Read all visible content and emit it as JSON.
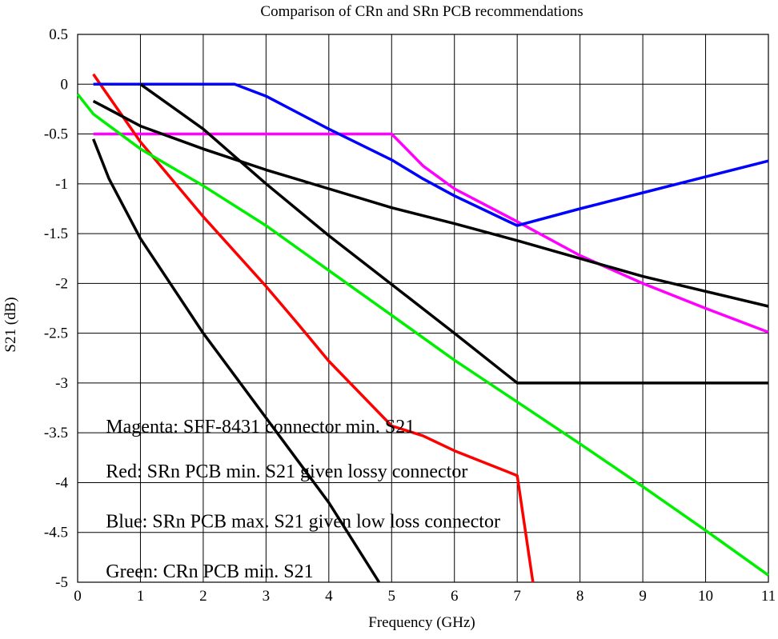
{
  "chart_data": {
    "type": "line",
    "title": "Comparison of CRn and SRn PCB recommendations",
    "xlabel": "Frequency (GHz)",
    "ylabel": "S21 (dB)",
    "xlim": [
      0,
      11
    ],
    "ylim": [
      -5,
      0.5
    ],
    "grid": true,
    "x_ticks": [
      0,
      1,
      2,
      3,
      4,
      5,
      6,
      7,
      8,
      9,
      10,
      11
    ],
    "x_tick_labels": [
      "0",
      "1",
      "2",
      "3",
      "4",
      "5",
      "6",
      "7",
      "8",
      "9",
      "10",
      "11"
    ],
    "y_ticks": [
      0.5,
      0,
      -0.5,
      -1,
      -1.5,
      -2,
      -2.5,
      -3,
      -3.5,
      -4,
      -4.5,
      -5
    ],
    "y_tick_labels": [
      "0.5",
      "0",
      "-0.5",
      "-1",
      "-1.5",
      "-2",
      "-2.5",
      "-3",
      "-3.5",
      "-4",
      "-4.5",
      "-5"
    ],
    "series": [
      {
        "color": "#ff00ff",
        "points": [
          [
            0.25,
            -0.5
          ],
          [
            5,
            -0.5
          ],
          [
            5.5,
            -0.82
          ],
          [
            6,
            -1.05
          ],
          [
            7,
            -1.38
          ],
          [
            8,
            -1.72
          ],
          [
            9,
            -2.0
          ],
          [
            10,
            -2.25
          ],
          [
            11,
            -2.49
          ]
        ]
      },
      {
        "color": "#ff0000",
        "points": [
          [
            0.25,
            0.1
          ],
          [
            1,
            -0.58
          ],
          [
            2,
            -1.33
          ],
          [
            3,
            -2.03
          ],
          [
            3.5,
            -2.4
          ],
          [
            4,
            -2.78
          ],
          [
            5,
            -3.43
          ],
          [
            5.5,
            -3.53
          ],
          [
            6,
            -3.68
          ],
          [
            7,
            -3.93
          ],
          [
            7.25,
            -5.0
          ]
        ]
      },
      {
        "color": "#0000ff",
        "points": [
          [
            0.25,
            0
          ],
          [
            2.5,
            0
          ],
          [
            3,
            -0.12
          ],
          [
            4,
            -0.45
          ],
          [
            5,
            -0.76
          ],
          [
            5.5,
            -0.95
          ],
          [
            6,
            -1.12
          ],
          [
            7,
            -1.42
          ],
          [
            8,
            -1.25
          ],
          [
            9,
            -1.09
          ],
          [
            10,
            -0.93
          ],
          [
            11,
            -0.77
          ]
        ]
      },
      {
        "color": "#00ee00",
        "points": [
          [
            0,
            -0.1
          ],
          [
            0.25,
            -0.3
          ],
          [
            1,
            -0.65
          ],
          [
            2,
            -1.02
          ],
          [
            3,
            -1.42
          ],
          [
            4,
            -1.87
          ],
          [
            5,
            -2.32
          ],
          [
            6,
            -2.77
          ],
          [
            7,
            -3.19
          ],
          [
            8,
            -3.61
          ],
          [
            9,
            -4.04
          ],
          [
            10,
            -4.48
          ],
          [
            11,
            -4.93
          ]
        ]
      },
      {
        "color": "#000000",
        "points": [
          [
            0.25,
            -0.17
          ],
          [
            1,
            -0.42
          ],
          [
            2,
            -0.65
          ],
          [
            3,
            -0.86
          ],
          [
            4,
            -1.05
          ],
          [
            5,
            -1.24
          ],
          [
            6,
            -1.4
          ],
          [
            7,
            -1.57
          ],
          [
            8,
            -1.75
          ],
          [
            9,
            -1.93
          ],
          [
            10,
            -2.08
          ],
          [
            11,
            -2.23
          ]
        ]
      },
      {
        "color": "#000000",
        "points": [
          [
            1,
            0
          ],
          [
            2,
            -0.45
          ],
          [
            3,
            -1.0
          ],
          [
            4,
            -1.52
          ],
          [
            5,
            -2.01
          ],
          [
            6,
            -2.5
          ],
          [
            7,
            -3.0
          ],
          [
            8,
            -3.0
          ],
          [
            9,
            -3.0
          ],
          [
            10,
            -3.0
          ],
          [
            11,
            -3.0
          ]
        ]
      },
      {
        "color": "#000000",
        "points": [
          [
            0.25,
            -0.55
          ],
          [
            0.5,
            -0.95
          ],
          [
            1,
            -1.55
          ],
          [
            2,
            -2.5
          ],
          [
            3,
            -3.35
          ],
          [
            4,
            -4.2
          ],
          [
            4.8,
            -5.0
          ]
        ]
      }
    ],
    "annotations": [
      {
        "text": "Magenta: SFF-8431 connector min. S21",
        "x": 0.45,
        "y": -3.5
      },
      {
        "text": "Red: SRn PCB min. S21 given lossy connector",
        "x": 0.45,
        "y": -3.95
      },
      {
        "text": "Blue: SRn PCB max. S21 given low loss connector",
        "x": 0.45,
        "y": -4.45
      },
      {
        "text": "Green: CRn PCB min. S21",
        "x": 0.45,
        "y": -4.95
      }
    ]
  }
}
